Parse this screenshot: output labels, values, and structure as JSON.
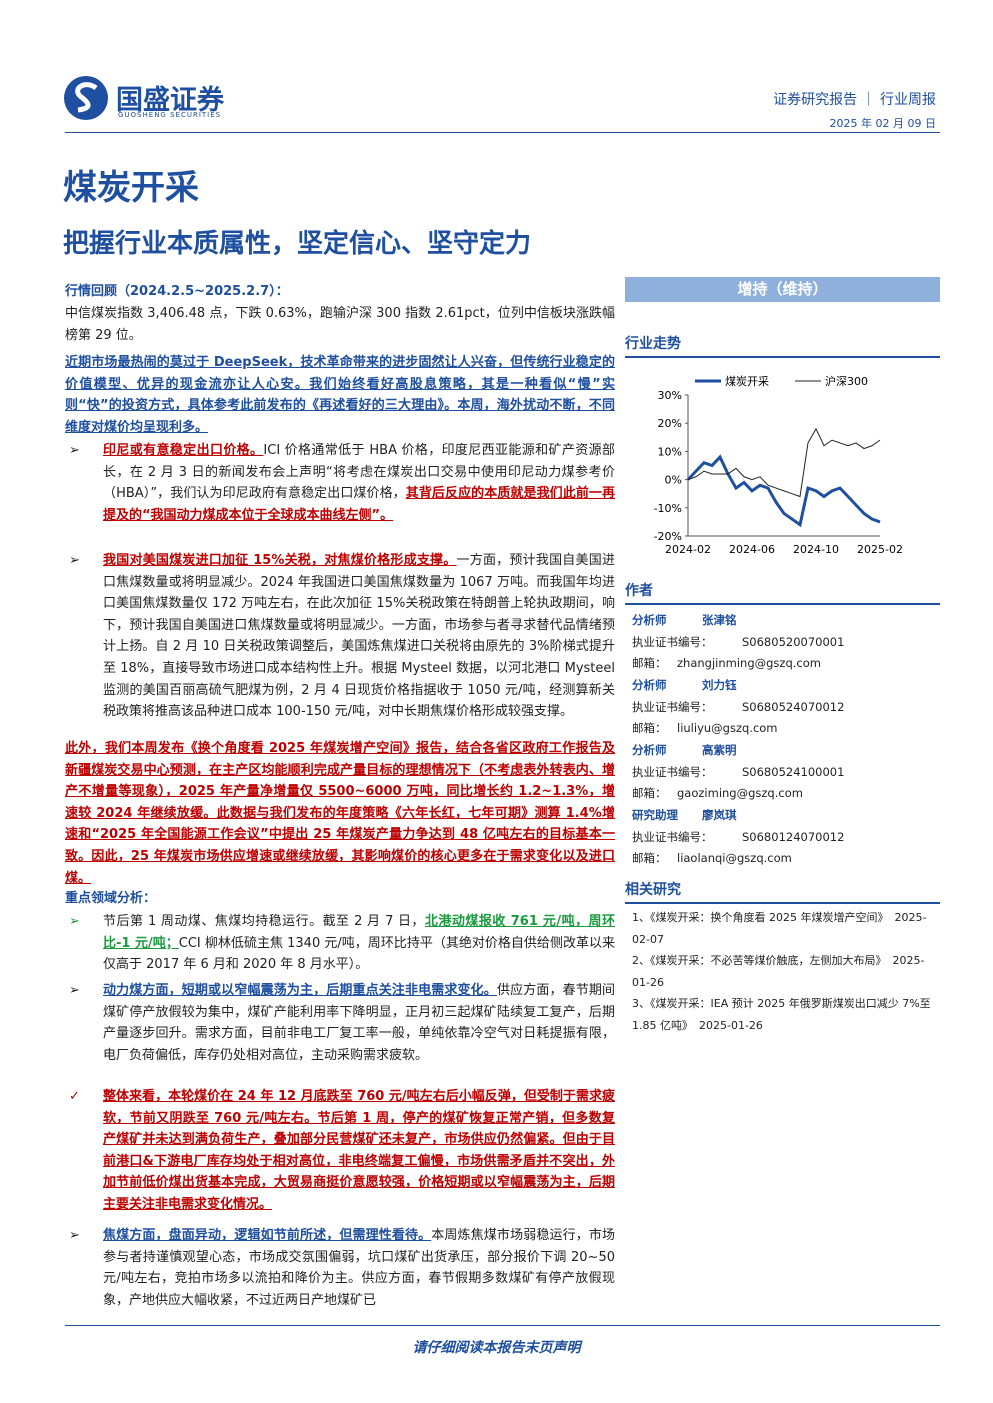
{
  "header": {
    "company": "国盛证券",
    "company_en": "GUOSHENG SECURITIES",
    "report_type": "证券研究报告 ｜ 行业周报",
    "date": "2025 年 02 月 09 日"
  },
  "title": "煤炭开采",
  "subtitle": "把握行业本质属性，坚定信心、坚守定力",
  "body": {
    "review_heading": "行情回顾（2024.2.5~2025.2.7）：",
    "review": "中信煤炭指数 3,406.48 点，下跌 0.63%，跑输沪深 300 指数 2.61pct，位列中信板块涨跌幅榜第 29 位。",
    "intro": "近期市场最热闹的莫过于 DeepSeek，技术革命带来的进步固然让人兴奋，但传统行业稳定的价值模型、优异的现金流亦让人心安。我们始终看好高股息策略，其是一种看似“慢”实则“快”的投资方式，具体参考此前发布的《再述看好的三大理由》。本周，海外扰动不断，不同维度对煤价均呈现利多。",
    "bullet1": [
      "印尼或有意稳定出口价格。",
      "ICI 价格通常低于 HBA 价格，印度尼西亚能源和矿产资源部长，在 2 月 3 日的新闻发布会上声明“将考虑在煤炭出口交易中使用印尼动力煤参考价（HBA）”，我们认为印尼政府有意稳定出口煤价格，",
      "其背后反应的本质就是我们此前一再提及的“我国动力煤成本位于全球成本曲线左侧”。"
    ],
    "bullet2": [
      "我国对美国煤炭进口加征 15%关税，对焦煤价格形成支撑。",
      "一方面，预计我国自美国进口焦煤数量或将明显减少。2024 年我国进口美国焦煤数量为 1067 万吨。而我国年均进口美国焦煤数量仅 172 万吨左右，在此次加征 15%关税政策在特朗普上轮执政期间，响下，预计我国自美国进口焦煤数量或将明显减少。一方面，市场参与者寻求替代品情绪预计上扬。自 2 月 10 日关税政策调整后，美国炼焦煤进口关税将由原先的 3%阶梯式提升至 18%，直接导致市场进口成本结构性上升。根据 Mysteel 数据，以河北港口 Mysteel 监测的美国百丽高硫气肥煤为例，2 月 4 日现货价格指据收于 1050 元/吨，经测算新关税政策将推高该品种进口成本 100-150 元/吨，对中长期焦煤价格形成较强支撑。"
    ],
    "supply": "此外，我们本周发布《换个角度看 2025 年煤炭增产空间》报告，结合各省区政府工作报告及新疆煤炭交易中心预测，在主产区均能顺利完成产量目标的理想情况下（不考虑表外转表内、增产不增量等现象），2025 年产量净增量仅 5500~6000 万吨，同比增长约 1.2~1.3%，增速较 2024 年继续放缓。此数据与我们发布的年度策略《六年长红，七年可期》测算 1.4%增速和“2025 年全国能源工作会议”中提出 25 年煤炭产量力争达到 48 亿吨左右的目标基本一致。因此，25 年煤炭市场供应增速或继续放缓，其影响煤价的核心更多在于需求变化以及进口煤。",
    "focus_heading": "重点领域分析：",
    "bullet3": [
      "节后第 1 周动煤、焦煤均持稳运行。截至 2 月 7 日，",
      "北港动煤报收 761 元/吨，周环比-1 元/吨；",
      "CCI 柳林低硫主焦 1340 元/吨，周环比持平（其绝对价格自供给侧改革以来仅高于 2017 年 6 月和 2020 年 8 月水平）。"
    ],
    "bullet4": [
      "动力煤方面，短期或以窄幅震荡为主，后期重点关注非电需求变化。",
      "供应方面，春节期间煤矿停产放假较为集中，煤矿产能利用率下降明显，正月初三起煤矿陆续复工复产，后期产量逐步回升。需求方面，目前非电工厂复工率一般，单纯依靠冷空气对日耗提振有限，电厂负荷偏低，库存仍处相对高位，主动采购需求疲软。"
    ],
    "bullet5": "整体来看，本轮煤价在 24 年 12 月底跌至 760 元/吨左右后小幅反弹，但受制于需求疲软，节前又阴跌至 760 元/吨左右。节后第 1 周，停产的煤矿恢复正常产销，但多数复产煤矿并未达到满负荷生产，叠加部分民营煤矿还未复产，市场供应仍然偏紧。但由于目前港口&下游电厂库存均处于相对高位，非电终端复工偏慢，市场供需矛盾并不突出，外加节前低价煤出货基本完成，大贸易商挺价意愿较强，价格短期或以窄幅震荡为主，后期主要关注非电需求变化情况。",
    "bullet6": [
      "焦煤方面，盘面异动，逻辑如节前所述，但需理性看待。",
      "本周炼焦煤市场弱稳运行，市场参与者持谨慎观望心态，市场成交氛围偏弱，坑口煤矿出货承压，部分报价下调 20~50 元/吨左右，竞拍市场多以流拍和降价为主。供应方面，春节假期多数煤矿有停产放假现象，产地供应大幅收紧，不过近两日产地煤矿已"
    ]
  },
  "sidebar": {
    "rating": "增持（维持）",
    "trend_heading": "行业走势",
    "author_heading": "作者",
    "authors": [
      {
        "role": "分析师",
        "name": "张津铭",
        "cert_label": "执业证书编号：",
        "cert": "S0680520070001",
        "email_label": "邮箱：",
        "email": "zhangjinming@gszq.com"
      },
      {
        "role": "分析师",
        "name": "刘力钰",
        "cert_label": "执业证书编号：",
        "cert": "S0680524070012",
        "email_label": "邮箱：",
        "email": "liuliyu@gszq.com"
      },
      {
        "role": "分析师",
        "name": "高紫明",
        "cert_label": "执业证书编号：",
        "cert": "S0680524100001",
        "email_label": "邮箱：",
        "email": "gaoziming@gszq.com"
      },
      {
        "role": "研究助理",
        "name": "廖岚琪",
        "cert_label": "执业证书编号：",
        "cert": "S0680124070012",
        "email_label": "邮箱：",
        "email": "liaolanqi@gszq.com"
      }
    ],
    "related_heading": "相关研究",
    "related": [
      {
        "title": "1、《煤炭开采：换个角度看 2025 年煤炭增产空间》",
        "date": "2025-02-07"
      },
      {
        "title": "2、《煤炭开采：不必苦等煤价触底，左侧加大布局》",
        "date": "2025-01-26"
      },
      {
        "title": "3、《煤炭开采：IEA 预计 2025 年俄罗斯煤炭出口减少 7%至 1.85 亿吨》",
        "date": "2025-01-26"
      }
    ]
  },
  "chart_data": {
    "type": "line",
    "categories": [
      "2024-02",
      null,
      null,
      null,
      null,
      null,
      null,
      null,
      "2024-06",
      null,
      null,
      null,
      null,
      null,
      null,
      null,
      "2024-10",
      null,
      null,
      null,
      null,
      null,
      null,
      null,
      "2025-02"
    ],
    "series": [
      {
        "name": "煤炭开采",
        "color": "#1f4fa0",
        "values": [
          0,
          3,
          6,
          5,
          8,
          2,
          -3,
          -1,
          -4,
          -2,
          -3,
          -8,
          -12,
          -14,
          -16,
          -3,
          -4,
          -6,
          -4,
          -3,
          -6,
          -9,
          -12,
          -14,
          -15
        ]
      },
      {
        "name": "沪深300",
        "color": "#222222",
        "values": [
          0,
          1,
          3,
          2,
          2,
          2,
          4,
          1,
          0,
          1,
          -2,
          -3,
          -4,
          -5,
          -6,
          13,
          18,
          12,
          14,
          13,
          12,
          13,
          11,
          12,
          14
        ]
      }
    ],
    "ylim": [
      -20,
      30
    ],
    "yticks": [
      {
        "value": 30,
        "label": "30%"
      },
      {
        "value": 20,
        "label": "20%"
      },
      {
        "value": 10,
        "label": "10%"
      },
      {
        "value": 0,
        "label": "0%"
      },
      {
        "value": -10,
        "label": "-10%"
      },
      {
        "value": -20,
        "label": "-20%"
      }
    ]
  },
  "footer": "请仔细阅读本报告末页声明"
}
